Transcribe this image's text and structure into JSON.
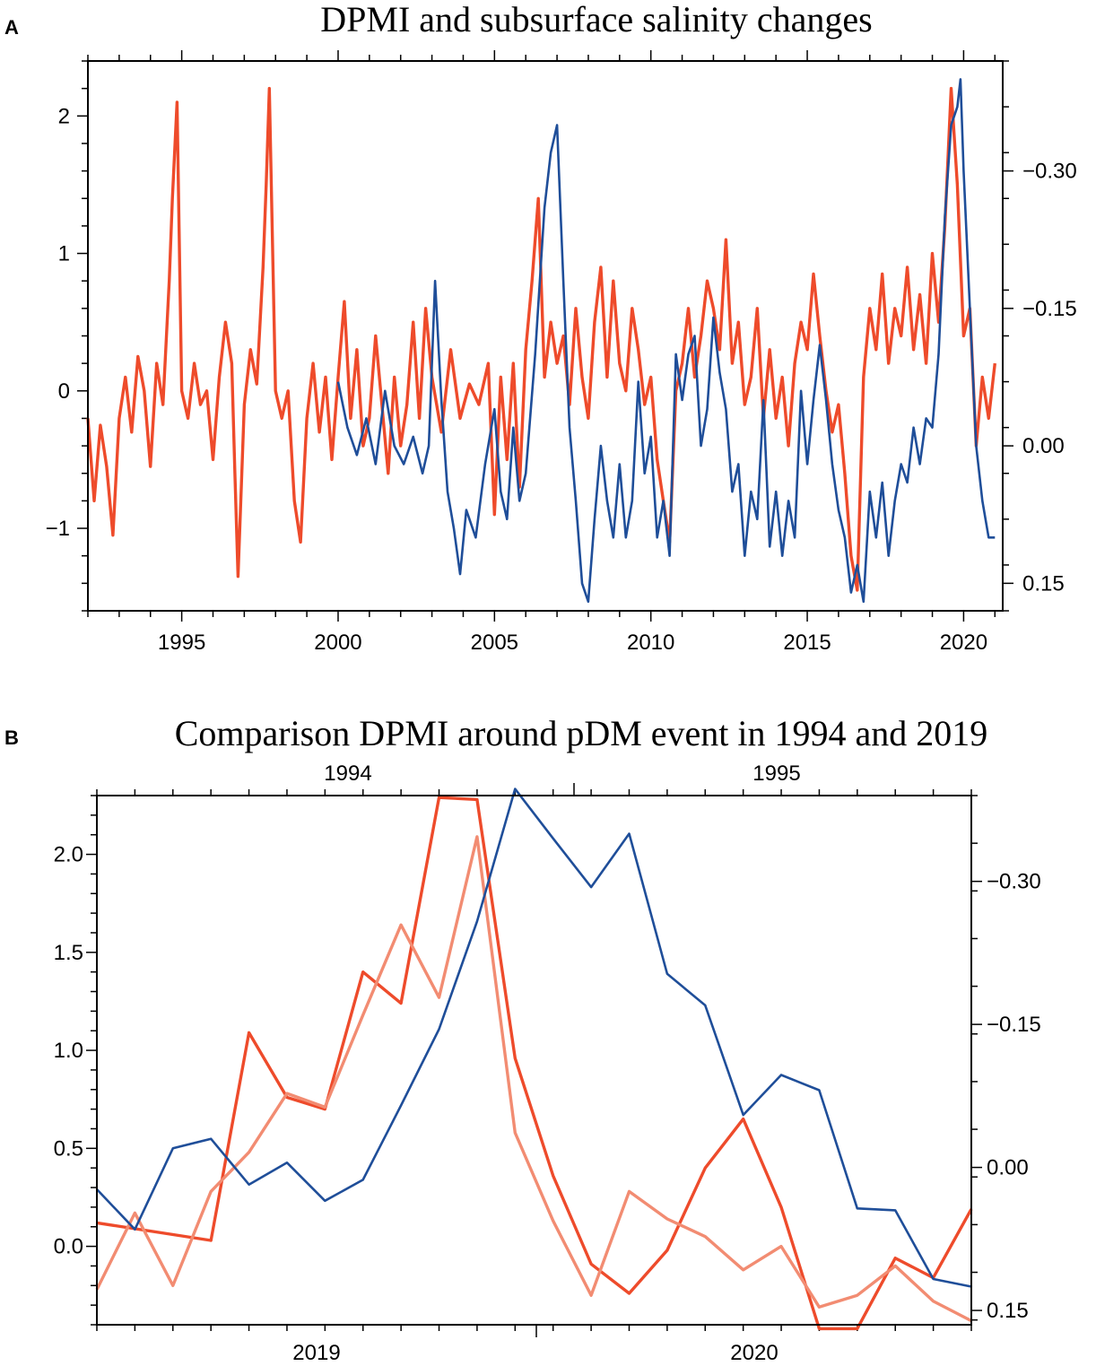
{
  "panels": {
    "a": {
      "letter": "A"
    },
    "b": {
      "letter": "B"
    }
  },
  "colors": {
    "dpmi": "#ee4b2b",
    "dpmi_light": "#f28c72",
    "salinity": "#1f4e99"
  },
  "chart_data": [
    {
      "type": "line",
      "title": "DPMI and subsurface salinity changes",
      "xlim": [
        1992.0,
        2021.25
      ],
      "x_ticks": [
        1995,
        2000,
        2005,
        2010,
        2015,
        2020
      ],
      "y_left": {
        "ylim": [
          -1.6,
          2.4
        ],
        "ticks": [
          -1,
          0,
          1,
          2
        ],
        "tick_labels": [
          "−1",
          "0",
          "1",
          "2"
        ]
      },
      "y_right": {
        "ylim": [
          0.18,
          -0.42
        ],
        "inverted": true,
        "ticks": [
          -0.3,
          -0.15,
          0.0,
          0.15
        ],
        "tick_labels": [
          "−0.30",
          "−0.15",
          "0.00",
          "0.15"
        ]
      },
      "series": [
        {
          "name": "DPMI",
          "color_key": "dpmi",
          "axis": "left",
          "x": [
            1992.0,
            1992.2,
            1992.4,
            1992.6,
            1992.8,
            1993.0,
            1993.2,
            1993.4,
            1993.6,
            1993.8,
            1994.0,
            1994.2,
            1994.4,
            1994.5,
            1994.6,
            1994.7,
            1994.85,
            1995.0,
            1995.2,
            1995.4,
            1995.6,
            1995.8,
            1996.0,
            1996.2,
            1996.4,
            1996.6,
            1996.7,
            1996.8,
            1997.0,
            1997.2,
            1997.4,
            1997.6,
            1997.7,
            1997.8,
            1998.0,
            1998.2,
            1998.4,
            1998.6,
            1998.8,
            1999.0,
            1999.2,
            1999.4,
            1999.6,
            1999.8,
            2000.0,
            2000.2,
            2000.4,
            2000.6,
            2000.8,
            2001.0,
            2001.2,
            2001.4,
            2001.6,
            2001.8,
            2002.0,
            2002.2,
            2002.4,
            2002.6,
            2002.8,
            2003.0,
            2003.3,
            2003.6,
            2003.9,
            2004.2,
            2004.5,
            2004.8,
            2005.0,
            2005.2,
            2005.4,
            2005.6,
            2005.8,
            2006.0,
            2006.2,
            2006.4,
            2006.6,
            2006.8,
            2007.0,
            2007.2,
            2007.4,
            2007.6,
            2007.8,
            2008.0,
            2008.2,
            2008.4,
            2008.6,
            2008.8,
            2009.0,
            2009.2,
            2009.4,
            2009.6,
            2009.8,
            2010.0,
            2010.2,
            2010.4,
            2010.6,
            2010.8,
            2011.0,
            2011.2,
            2011.4,
            2011.6,
            2011.8,
            2012.0,
            2012.2,
            2012.4,
            2012.6,
            2012.8,
            2013.0,
            2013.2,
            2013.4,
            2013.6,
            2013.8,
            2014.0,
            2014.2,
            2014.4,
            2014.6,
            2014.8,
            2015.0,
            2015.2,
            2015.4,
            2015.6,
            2015.8,
            2016.0,
            2016.2,
            2016.4,
            2016.6,
            2016.8,
            2017.0,
            2017.2,
            2017.4,
            2017.6,
            2017.8,
            2018.0,
            2018.2,
            2018.4,
            2018.6,
            2018.8,
            2019.0,
            2019.2,
            2019.4,
            2019.6,
            2019.8,
            2020.0,
            2020.2,
            2020.4,
            2020.6,
            2020.8,
            2021.0
          ],
          "values": [
            -0.2,
            -0.8,
            -0.25,
            -0.55,
            -1.05,
            -0.2,
            0.1,
            -0.3,
            0.25,
            0.0,
            -0.55,
            0.2,
            -0.1,
            0.35,
            0.8,
            1.4,
            2.1,
            0.0,
            -0.2,
            0.2,
            -0.1,
            0.0,
            -0.5,
            0.1,
            0.5,
            0.2,
            -0.6,
            -1.35,
            -0.1,
            0.3,
            0.05,
            0.9,
            1.5,
            2.2,
            0.0,
            -0.2,
            0.0,
            -0.8,
            -1.1,
            -0.2,
            0.2,
            -0.3,
            0.1,
            -0.5,
            0.1,
            0.65,
            -0.2,
            0.3,
            -0.4,
            -0.2,
            0.4,
            -0.1,
            -0.6,
            0.1,
            -0.4,
            -0.1,
            0.5,
            -0.2,
            0.6,
            0.1,
            -0.3,
            0.3,
            -0.2,
            0.05,
            -0.1,
            0.2,
            -0.9,
            0.1,
            -0.5,
            0.2,
            -0.7,
            0.3,
            0.8,
            1.4,
            0.1,
            0.5,
            0.2,
            0.4,
            -0.1,
            0.6,
            0.1,
            -0.2,
            0.5,
            0.9,
            0.1,
            0.8,
            0.2,
            0.0,
            0.6,
            0.3,
            -0.1,
            0.1,
            -0.5,
            -0.8,
            -1.1,
            0.0,
            0.2,
            0.6,
            0.1,
            0.4,
            0.8,
            0.6,
            0.3,
            1.1,
            0.2,
            0.5,
            -0.1,
            0.1,
            0.6,
            -0.2,
            0.3,
            -0.2,
            0.1,
            -0.4,
            0.2,
            0.5,
            0.3,
            0.85,
            0.4,
            0.0,
            -0.3,
            -0.1,
            -0.6,
            -1.2,
            -1.45,
            0.1,
            0.6,
            0.3,
            0.85,
            0.2,
            0.6,
            0.4,
            0.9,
            0.3,
            0.7,
            0.2,
            1.0,
            0.5,
            1.2,
            2.2,
            1.5,
            0.4,
            0.6,
            -0.4,
            0.1,
            -0.2,
            0.2
          ]
        },
        {
          "name": "Subsurface salinity",
          "color_key": "salinity",
          "axis": "right",
          "x": [
            2000.0,
            2000.3,
            2000.6,
            2000.9,
            2001.2,
            2001.5,
            2001.8,
            2002.1,
            2002.4,
            2002.7,
            2002.9,
            2003.1,
            2003.3,
            2003.5,
            2003.7,
            2003.9,
            2004.1,
            2004.4,
            2004.7,
            2005.0,
            2005.2,
            2005.4,
            2005.6,
            2005.8,
            2006.0,
            2006.3,
            2006.6,
            2006.8,
            2007.0,
            2007.2,
            2007.4,
            2007.6,
            2007.8,
            2008.0,
            2008.2,
            2008.4,
            2008.6,
            2008.8,
            2009.0,
            2009.2,
            2009.4,
            2009.6,
            2009.8,
            2010.0,
            2010.2,
            2010.4,
            2010.6,
            2010.8,
            2011.0,
            2011.2,
            2011.4,
            2011.6,
            2011.8,
            2012.0,
            2012.2,
            2012.4,
            2012.6,
            2012.8,
            2013.0,
            2013.2,
            2013.4,
            2013.6,
            2013.8,
            2014.0,
            2014.2,
            2014.4,
            2014.6,
            2014.8,
            2015.0,
            2015.2,
            2015.4,
            2015.6,
            2015.8,
            2016.0,
            2016.2,
            2016.4,
            2016.6,
            2016.8,
            2017.0,
            2017.2,
            2017.4,
            2017.6,
            2017.8,
            2018.0,
            2018.2,
            2018.4,
            2018.6,
            2018.8,
            2019.0,
            2019.2,
            2019.4,
            2019.6,
            2019.8,
            2019.9,
            2020.0,
            2020.2,
            2020.4,
            2020.6,
            2020.8,
            2021.0
          ],
          "values": [
            -0.07,
            -0.02,
            0.01,
            -0.03,
            0.02,
            -0.06,
            0.0,
            0.02,
            -0.01,
            0.03,
            0.0,
            -0.18,
            -0.05,
            0.05,
            0.09,
            0.14,
            0.07,
            0.1,
            0.02,
            -0.04,
            0.05,
            0.08,
            -0.02,
            0.06,
            0.03,
            -0.1,
            -0.26,
            -0.32,
            -0.35,
            -0.18,
            -0.02,
            0.06,
            0.15,
            0.17,
            0.08,
            0.0,
            0.06,
            0.1,
            0.02,
            0.1,
            0.06,
            -0.07,
            0.03,
            -0.01,
            0.1,
            0.06,
            0.12,
            -0.1,
            -0.05,
            -0.1,
            -0.12,
            0.0,
            -0.04,
            -0.14,
            -0.08,
            -0.04,
            0.05,
            0.02,
            0.12,
            0.05,
            0.08,
            -0.05,
            0.11,
            0.05,
            0.12,
            0.06,
            0.1,
            -0.06,
            0.02,
            -0.05,
            -0.11,
            -0.05,
            0.02,
            0.07,
            0.1,
            0.16,
            0.13,
            0.17,
            0.05,
            0.1,
            0.04,
            0.12,
            0.06,
            0.02,
            0.04,
            -0.02,
            0.02,
            -0.03,
            -0.02,
            -0.1,
            -0.25,
            -0.35,
            -0.37,
            -0.4,
            -0.3,
            -0.15,
            0.0,
            0.06,
            0.1,
            0.1
          ]
        }
      ]
    },
    {
      "type": "line",
      "title": "Comparison DPMI around pDM event in 1994 and 2019",
      "x_top": {
        "tick_labels": [
          "1994",
          "1995"
        ]
      },
      "x_bottom": {
        "tick_labels": [
          "2019",
          "2020"
        ]
      },
      "xlim": [
        0,
        23
      ],
      "y_left": {
        "ylim": [
          -0.4,
          2.3
        ],
        "ticks": [
          0.0,
          0.5,
          1.0,
          1.5,
          2.0
        ],
        "tick_labels": [
          "0.0",
          "0.5",
          "1.0",
          "1.5",
          "2.0"
        ]
      },
      "y_right": {
        "ylim": [
          0.165,
          -0.39
        ],
        "inverted": true,
        "ticks": [
          -0.3,
          -0.15,
          0.0,
          0.15
        ],
        "tick_labels": [
          "−0.30",
          "−0.15",
          "0.00",
          "0.15"
        ]
      },
      "series": [
        {
          "name": "DPMI 2019",
          "color_key": "dpmi",
          "axis": "left",
          "x": [
            0,
            3,
            4,
            5,
            6,
            7,
            8,
            9,
            10,
            11,
            12,
            13,
            14,
            15,
            16,
            17,
            18,
            19,
            20,
            21,
            22,
            23
          ],
          "values": [
            0.12,
            0.03,
            1.09,
            0.76,
            0.7,
            1.4,
            1.24,
            2.29,
            2.28,
            0.96,
            0.36,
            -0.09,
            -0.24,
            -0.02,
            0.4,
            0.65,
            0.2,
            -0.42,
            -0.42,
            -0.06,
            -0.16,
            0.19
          ]
        },
        {
          "name": "DPMI 1994",
          "color_key": "dpmi_light",
          "axis": "left",
          "x": [
            0,
            1,
            2,
            3,
            4,
            5,
            6,
            7,
            8,
            9,
            10,
            11,
            12,
            13,
            14,
            15,
            16,
            17,
            18,
            19,
            20,
            21,
            22,
            23
          ],
          "values": [
            -0.22,
            0.17,
            -0.2,
            0.28,
            0.48,
            0.78,
            0.71,
            1.18,
            1.64,
            1.27,
            2.09,
            0.58,
            0.13,
            -0.25,
            0.28,
            0.14,
            0.05,
            -0.12,
            0.0,
            -0.31,
            -0.25,
            -0.1,
            -0.28,
            -0.38
          ]
        },
        {
          "name": "Subsurface salinity",
          "color_key": "salinity",
          "axis": "right",
          "x": [
            0,
            1,
            2,
            3,
            4,
            5,
            6,
            7,
            8,
            9,
            10,
            11,
            12,
            13,
            14,
            15,
            16,
            17,
            18,
            19,
            20,
            21,
            22,
            23
          ],
          "values": [
            0.023,
            0.065,
            -0.02,
            -0.03,
            0.018,
            -0.005,
            0.035,
            0.013,
            -0.065,
            -0.145,
            -0.258,
            -0.397,
            -0.345,
            -0.294,
            -0.35,
            -0.203,
            -0.17,
            -0.055,
            -0.097,
            -0.081,
            0.043,
            0.045,
            0.117,
            0.125
          ]
        }
      ]
    }
  ]
}
